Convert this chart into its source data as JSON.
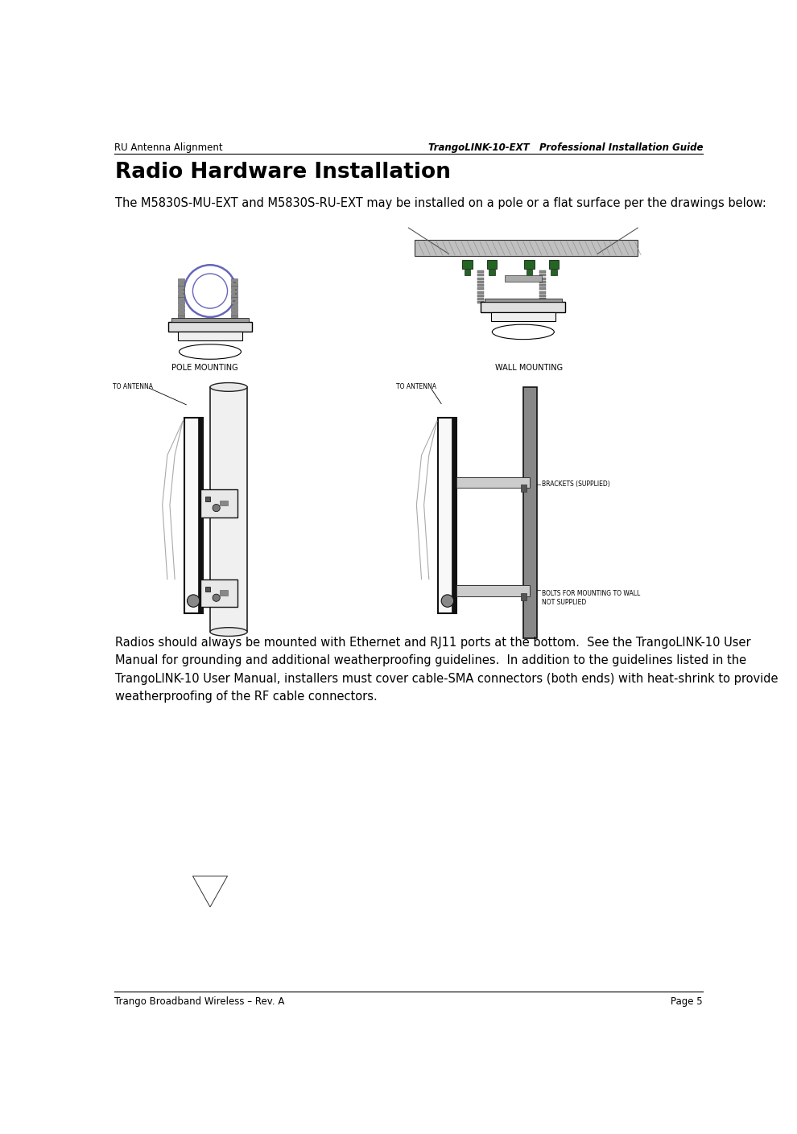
{
  "page_width": 9.9,
  "page_height": 14.09,
  "bg_color": "#ffffff",
  "header_left": "RU Antenna Alignment",
  "header_right": "TrangoLINK-10-EXT   Professional Installation Guide",
  "header_font_size": 8.5,
  "footer_left": "Trango Broadband Wireless – Rev. A",
  "footer_right": "Page 5",
  "footer_font_size": 8.5,
  "section_title": "Radio Hardware Installation",
  "section_title_size": 19,
  "body_text_1": "The M5830S-MU-EXT and M5830S-RU-EXT may be installed on a pole or a flat surface per the drawings below:",
  "body_text_1_size": 10.5,
  "label_pole": "POLE MOUNTING",
  "label_wall": "WALL MOUNTING",
  "label_font_size": 7,
  "annotation_to_antenna_left": "TO ANTENNA",
  "annotation_to_antenna_right": "TO ANTENNA",
  "annotation_brackets": "BRACKETS (SUPPLIED)",
  "annotation_bolts": "BOLTS FOR MOUNTING TO WALL\nNOT SUPPLIED",
  "annotation_font_size": 5.5,
  "body_text_2": "Radios should always be mounted with Ethernet and RJ11 ports at the bottom.  See the TrangoLINK-10 User\nManual for grounding and additional weatherproofing guidelines.  In addition to the guidelines listed in the\nTrangoLINK-10 User Manual, installers must cover cable-SMA connectors (both ends) with heat-shrink to provide\nweatherproofing of the RF cable connectors.",
  "body_text_2_size": 10.5,
  "line_color": "#000000",
  "gray_color": "#888888",
  "blue_color": "#6666bb",
  "light_gray": "#cccccc",
  "green_color": "#226622",
  "dark_gray": "#555555",
  "pole_color": "#dddddd",
  "bracket_color": "#aaaaaa"
}
